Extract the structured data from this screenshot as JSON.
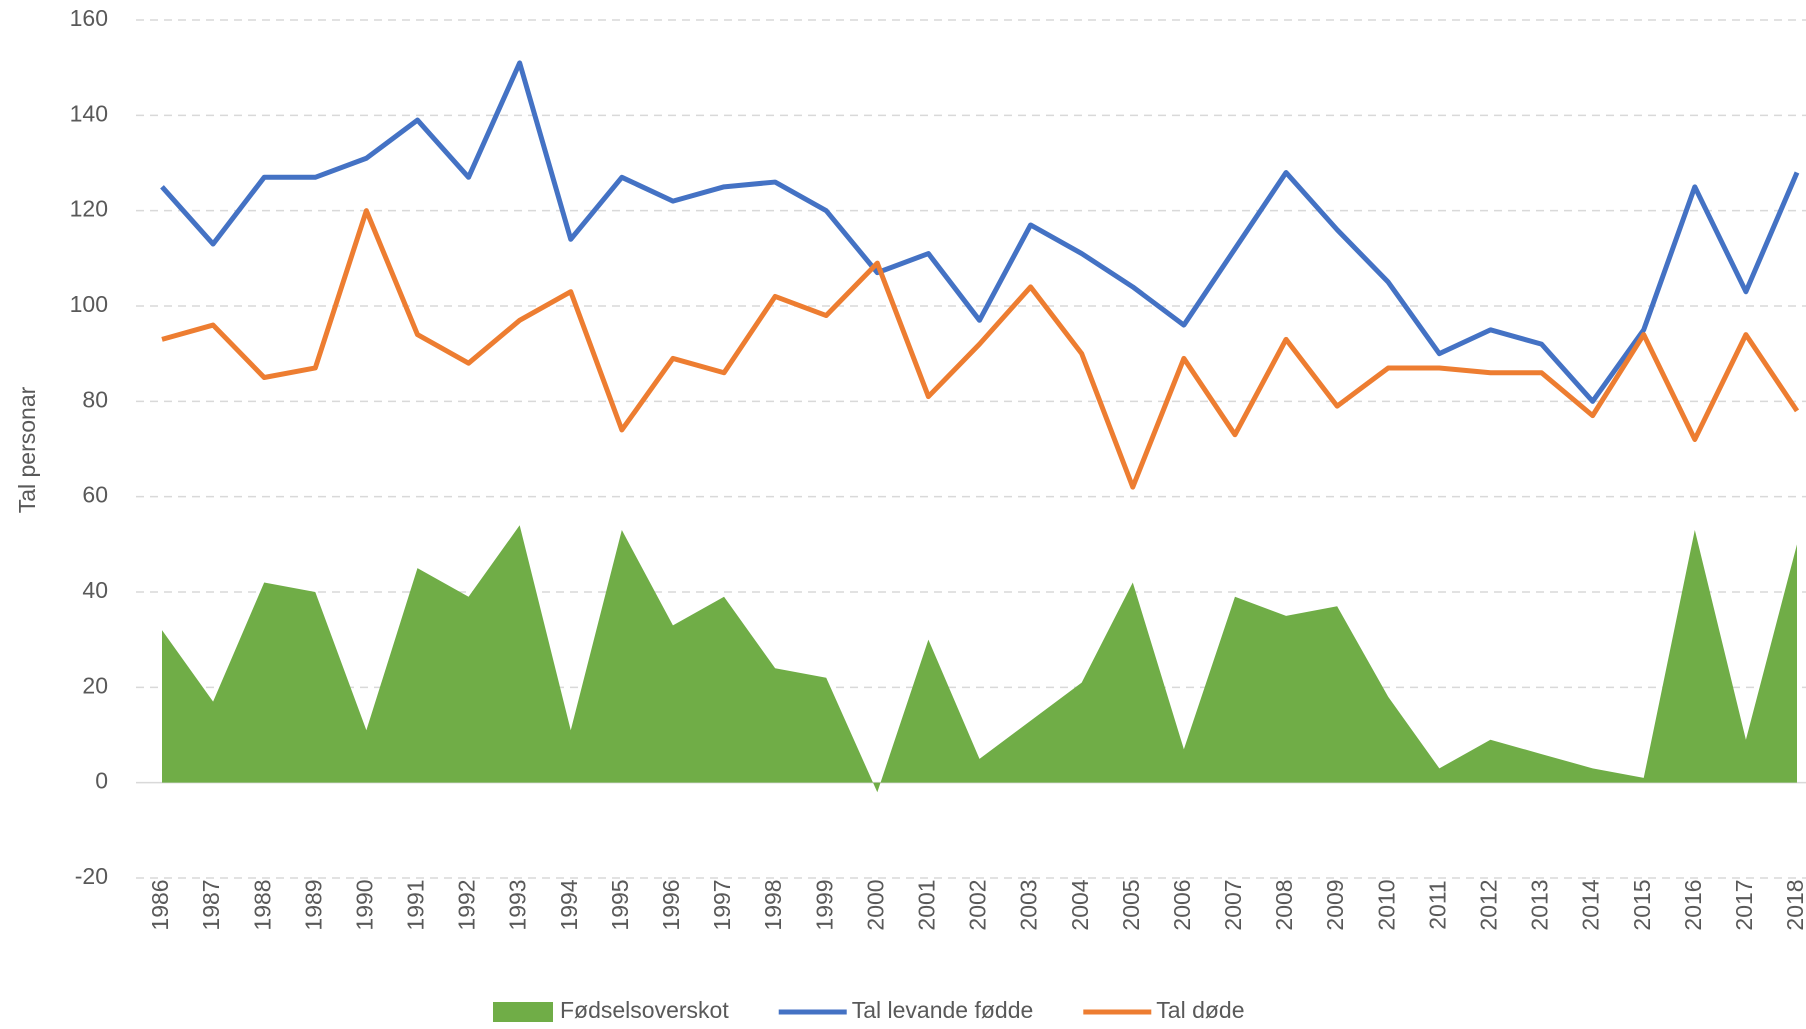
{
  "chart_data": {
    "type": "line",
    "y_axis_label": "Tal personar",
    "x": [
      1986,
      1987,
      1988,
      1989,
      1990,
      1991,
      1992,
      1993,
      1994,
      1995,
      1996,
      1997,
      1998,
      1999,
      2000,
      2001,
      2002,
      2003,
      2004,
      2005,
      2006,
      2007,
      2008,
      2009,
      2010,
      2011,
      2012,
      2013,
      2014,
      2015,
      2016,
      2017,
      2018
    ],
    "series": [
      {
        "name": "Fødselsoverskot",
        "type": "area",
        "color": "#70ad47",
        "values": [
          32,
          17,
          42,
          40,
          11,
          45,
          39,
          54,
          11,
          53,
          33,
          39,
          24,
          22,
          -2,
          30,
          5,
          13,
          21,
          42,
          7,
          39,
          35,
          37,
          18,
          3,
          9,
          6,
          3,
          1,
          53,
          9,
          50
        ]
      },
      {
        "name": "Tal levande fødde",
        "type": "line",
        "color": "#4472c4",
        "values": [
          125,
          113,
          127,
          127,
          131,
          139,
          127,
          151,
          114,
          127,
          122,
          125,
          126,
          120,
          107,
          111,
          97,
          117,
          111,
          104,
          96,
          112,
          128,
          116,
          105,
          90,
          95,
          92,
          80,
          95,
          125,
          103,
          128
        ]
      },
      {
        "name": "Tal døde",
        "type": "line",
        "color": "#ed7d31",
        "values": [
          93,
          96,
          85,
          87,
          120,
          94,
          88,
          97,
          103,
          74,
          89,
          86,
          102,
          98,
          109,
          81,
          92,
          104,
          90,
          62,
          89,
          73,
          93,
          79,
          87,
          87,
          86,
          86,
          77,
          94,
          72,
          94,
          78
        ]
      }
    ],
    "ylim": [
      -20,
      160
    ],
    "yticks": [
      -20,
      0,
      20,
      40,
      60,
      80,
      100,
      120,
      140,
      160
    ],
    "grid": true,
    "legend": "bottom"
  }
}
